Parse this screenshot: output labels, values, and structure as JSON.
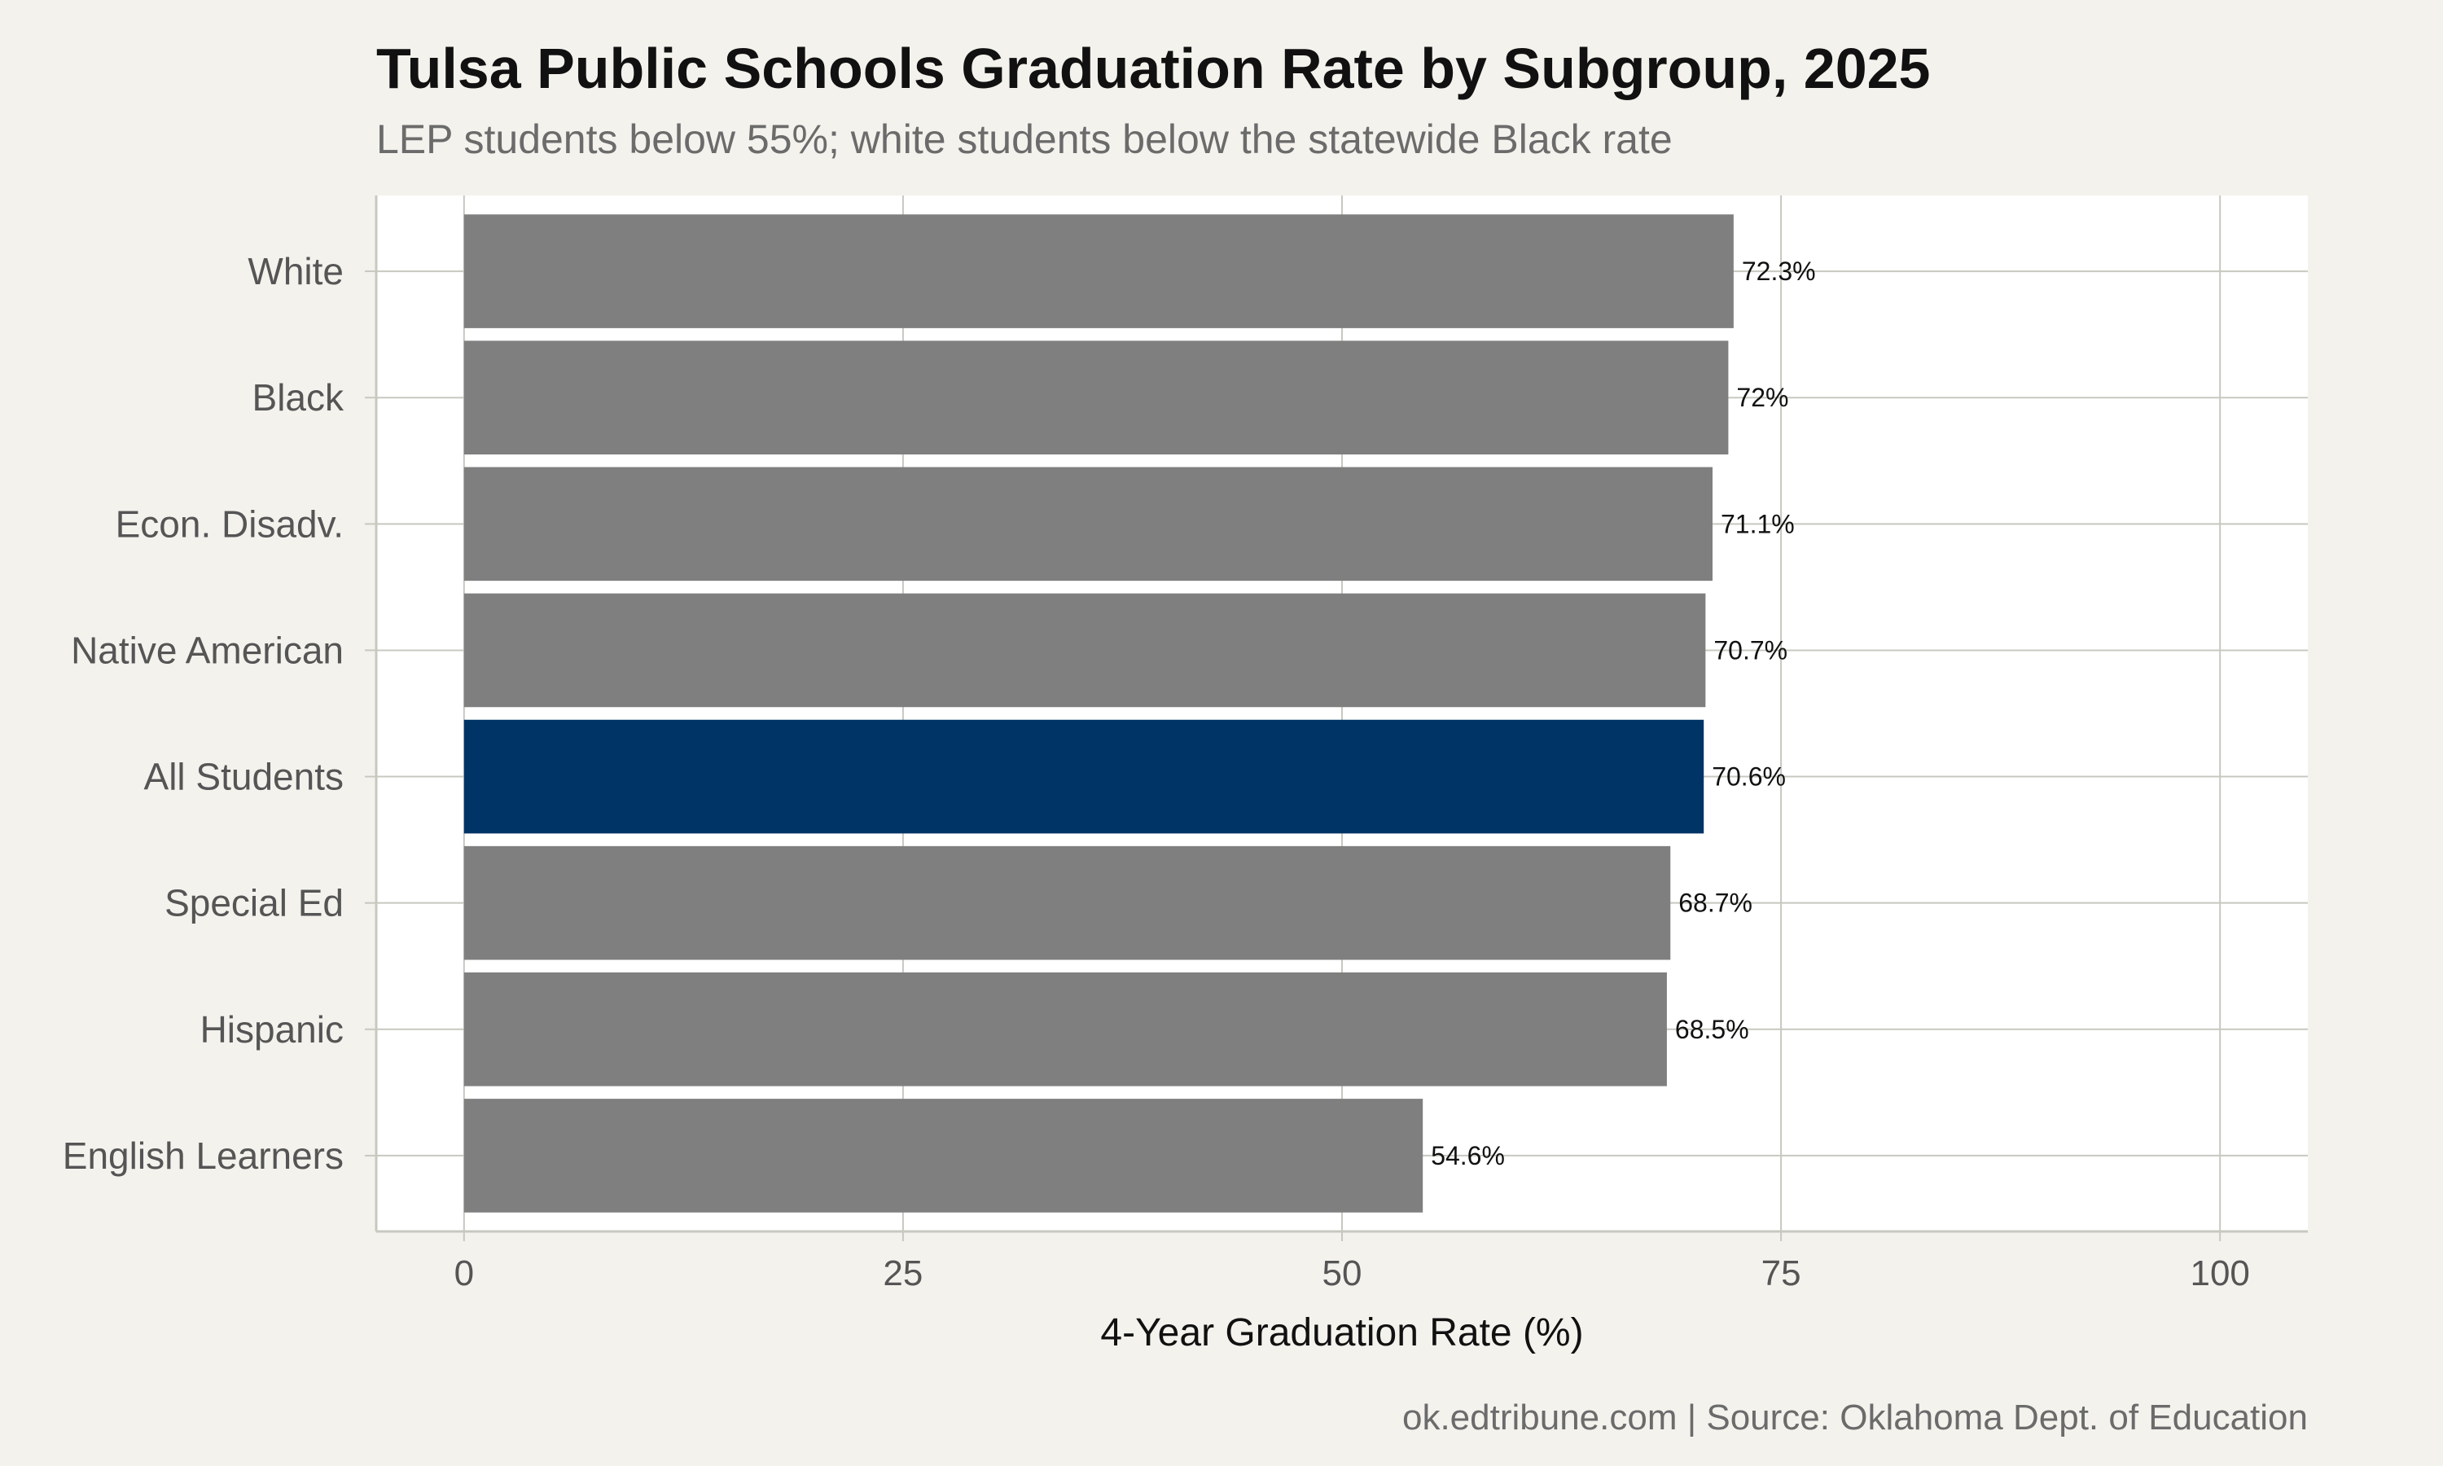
{
  "chart_data": {
    "type": "bar",
    "orientation": "horizontal",
    "title": "Tulsa Public Schools Graduation Rate by Subgroup, 2025",
    "subtitle": "LEP students below 55%; white students below the statewide Black rate",
    "categories": [
      "White",
      "Black",
      "Econ. Disadv.",
      "Native American",
      "All Students",
      "Special Ed",
      "Hispanic",
      "English Learners"
    ],
    "values": [
      72.3,
      72,
      71.1,
      70.7,
      70.6,
      68.7,
      68.5,
      54.6
    ],
    "value_labels": [
      "72.3%",
      "72%",
      "71.1%",
      "70.7%",
      "70.6%",
      "68.7%",
      "68.5%",
      "54.6%"
    ],
    "highlight_category": "All Students",
    "xlabel": "4-Year Graduation Rate (%)",
    "ylabel": "",
    "xlim": [
      -5,
      105
    ],
    "xticks": [
      0,
      25,
      50,
      75,
      100
    ],
    "xtick_labels": [
      "0",
      "25",
      "50",
      "75",
      "100"
    ],
    "grid": true,
    "legend": "none",
    "colors": {
      "bar": "#7f7f7f",
      "highlight": "#003366",
      "panel": "#ffffff",
      "background": "#f4f2ed",
      "grid": "#c8c8c0"
    },
    "caption": "ok.edtribune.com | Source: Oklahoma Dept. of Education"
  }
}
